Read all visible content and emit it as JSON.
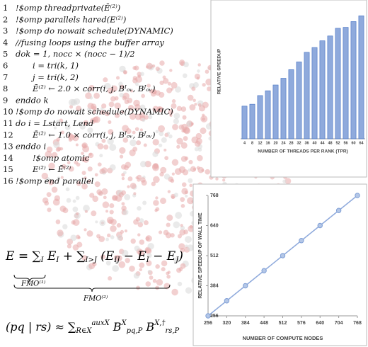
{
  "code": {
    "lines": [
      {
        "num": "1",
        "text": "!$omp threadprivate(Ē⁽²⁾)"
      },
      {
        "num": "2",
        "text": "!$omp parallels hared(E⁽²⁾)"
      },
      {
        "num": "3",
        "text": "!$omp do nowait schedule(DYNAMIC)"
      },
      {
        "num": "4",
        "text": "//fusing loops using the buffer array"
      },
      {
        "num": "5",
        "text": "dok = 1, nocc × (nocc − 1)/2"
      },
      {
        "num": "6",
        "text": "i = tri(k, 1)"
      },
      {
        "num": "7",
        "text": "j = tri(k, 2)"
      },
      {
        "num": "8",
        "text": "Ē⁽²⁾ ← 2.0 × corr(i, j, Bᴵₒᵥ, Bᴶₒᵥ)"
      },
      {
        "num": "9",
        "text": "enddo k"
      },
      {
        "num": "10",
        "text": "!$omp do nowait schedule(DYNAMIC)"
      },
      {
        "num": "11",
        "text": "do i = Lstart, Lend"
      },
      {
        "num": "12",
        "text": "Ē⁽²⁾ ← 1.0 × corr(i, j, Bᴵₒᵥ, Bᴶₒᵥ)"
      },
      {
        "num": "13",
        "text": "enddo i"
      },
      {
        "num": "14",
        "text": "!$omp atomic"
      },
      {
        "num": "15",
        "text": "E⁽²⁾ ← Ē⁽²⁾"
      },
      {
        "num": "16",
        "text": "!$omp end parallel"
      }
    ]
  },
  "equations": {
    "energy": [
      {
        "t": "E = ∑",
        "r": "main"
      },
      {
        "t": "I",
        "r": "sub"
      },
      {
        "t": " E",
        "r": "main"
      },
      {
        "t": "I",
        "r": "sub"
      },
      {
        "t": " + ∑",
        "r": "main"
      },
      {
        "t": "I>J",
        "r": "sub"
      },
      {
        "t": " (E",
        "r": "main"
      },
      {
        "t": "IJ",
        "r": "sub"
      },
      {
        "t": " − E",
        "r": "main"
      },
      {
        "t": "I",
        "r": "sub"
      },
      {
        "t": " − E",
        "r": "main"
      },
      {
        "t": "J",
        "r": "sub"
      },
      {
        "t": ")",
        "r": "main"
      }
    ],
    "fmo1": "FMO⁽¹⁾",
    "fmo2": "FMO⁽²⁾",
    "ri": [
      {
        "t": "(pq | rs) ≈ ∑",
        "r": "main"
      },
      {
        "t": "R∈X",
        "r": "sub"
      },
      {
        "t": "auxX",
        "r": "sup"
      },
      {
        "t": " B",
        "r": "main"
      },
      {
        "t": "X",
        "r": "sup"
      },
      {
        "t": "pq,P",
        "r": "sub"
      },
      {
        "t": " B",
        "r": "main"
      },
      {
        "t": "X,†",
        "r": "sup"
      },
      {
        "t": "rs,P",
        "r": "sub"
      }
    ]
  },
  "chart_data": [
    {
      "type": "bar",
      "x_label": "NUMBER OF THREADS PER RANK (TPR)",
      "y_label": "RELATIVE SPEEDUP",
      "categories": [
        "4",
        "8",
        "12",
        "16",
        "20",
        "24",
        "28",
        "32",
        "36",
        "40",
        "44",
        "48",
        "52",
        "56",
        "60",
        "64"
      ],
      "values": [
        3.4,
        3.6,
        4.5,
        5.0,
        5.6,
        6.3,
        7.2,
        8.0,
        9.0,
        9.5,
        10.2,
        10.7,
        11.5,
        11.6,
        12.2,
        12.8
      ],
      "color": "#8faadc",
      "ylim": [
        0,
        14
      ]
    },
    {
      "type": "line",
      "x_label": "NUMBER OF COMPUTE NODES",
      "y_label": "RELATIVE SPEEDUP OF WALL TIME",
      "x": [
        256,
        320,
        384,
        448,
        512,
        576,
        640,
        704,
        768
      ],
      "values": [
        256,
        320,
        384,
        448,
        512,
        576,
        640,
        704,
        768
      ],
      "color": "#8faadc",
      "xlim": [
        256,
        768
      ],
      "xticks": [
        256,
        320,
        384,
        448,
        512,
        576,
        640,
        704,
        768
      ],
      "ylim": [
        256,
        768
      ],
      "yticks": [
        256,
        384,
        512,
        640,
        768
      ]
    }
  ]
}
